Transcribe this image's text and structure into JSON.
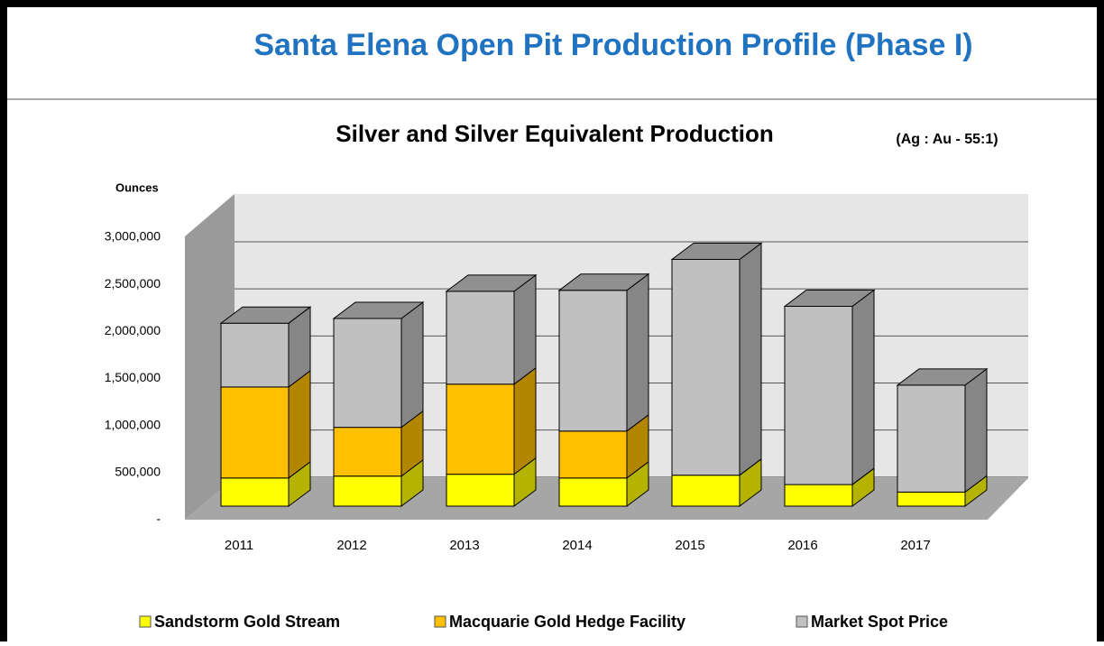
{
  "header": {
    "title": "Santa Elena Open Pit Production Profile (Phase I)"
  },
  "chart_data": {
    "type": "bar3d_stacked",
    "title": "Silver and Silver Equivalent Production",
    "subtitle": "(Ag : Au - 55:1)",
    "y_label": "Ounces",
    "categories": [
      "2011",
      "2012",
      "2013",
      "2014",
      "2015",
      "2016",
      "2017"
    ],
    "series": [
      {
        "name": "Sandstorm Gold Stream",
        "color": "#ffff00",
        "values": [
          300000,
          320000,
          340000,
          300000,
          330000,
          230000,
          150000
        ]
      },
      {
        "name": "Macquarie Gold Hedge Facility",
        "color": "#ffc000",
        "values": [
          970000,
          520000,
          960000,
          500000,
          0,
          0,
          0
        ]
      },
      {
        "name": "Market Spot Price",
        "color": "#c0c0c0",
        "values": [
          680000,
          1160000,
          990000,
          1500000,
          2300000,
          1900000,
          1140000
        ]
      }
    ],
    "ylim": [
      0,
      3000000
    ],
    "yticks": [
      {
        "value": 0,
        "label": "-"
      },
      {
        "value": 500000,
        "label": "500,000"
      },
      {
        "value": 1000000,
        "label": "1,000,000"
      },
      {
        "value": 1500000,
        "label": "1,500,000"
      },
      {
        "value": 2000000,
        "label": "2,000,000"
      },
      {
        "value": 2500000,
        "label": "2,500,000"
      },
      {
        "value": 3000000,
        "label": "3,000,000"
      }
    ],
    "grid": true,
    "legend": "bottom"
  }
}
